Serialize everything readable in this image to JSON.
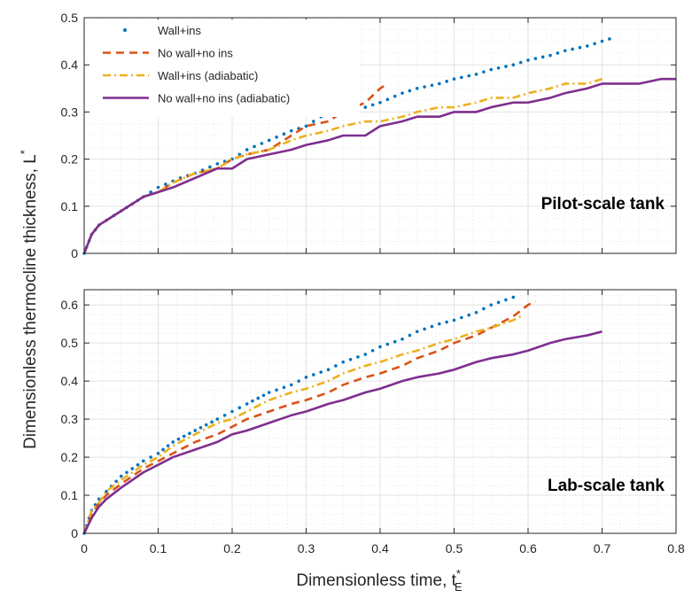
{
  "figure": {
    "ylabel": "Dimensionless thermocline thickness, L",
    "ylabel_super": "*",
    "xlabel": "Dimensionless time, t",
    "xlabel_super": "*",
    "xlabel_sub": "E"
  },
  "colors": {
    "wall_ins": "#0072BD",
    "no_wall_no_ins": "#D95319",
    "wall_ins_adiabatic": "#EDB120",
    "no_wall_no_ins_adiabatic": "#7E2F8E",
    "grid": "#e3e3e3",
    "axis": "#262626"
  },
  "chart_data": [
    {
      "type": "line",
      "panel_label": "Pilot-scale tank",
      "xlim": [
        0,
        0.8
      ],
      "ylim": [
        0,
        0.5
      ],
      "x_ticks": [
        "0",
        "0.1",
        "0.2",
        "0.3",
        "0.4",
        "0.5",
        "0.6",
        "0.7",
        "0.8"
      ],
      "y_ticks": [
        "0",
        "0.1",
        "0.2",
        "0.3",
        "0.4",
        "0.5"
      ],
      "show_x_tick_labels": false,
      "grid": true,
      "legend": {
        "position": "top-left",
        "entries": [
          "Wall+ins",
          "No wall+no ins",
          "Wall+ins (adiabatic)",
          "No wall+no ins (adiabatic)"
        ]
      },
      "series": [
        {
          "name": "Wall+ins",
          "style": "dotted",
          "x": [
            0,
            0.01,
            0.02,
            0.03,
            0.05,
            0.08,
            0.1,
            0.13,
            0.15,
            0.18,
            0.2,
            0.22,
            0.25,
            0.28,
            0.3,
            0.32,
            0.35,
            0.38,
            0.4,
            0.43,
            0.45,
            0.48,
            0.5,
            0.53,
            0.55,
            0.58,
            0.6,
            0.63,
            0.65,
            0.68,
            0.7,
            0.72
          ],
          "y": [
            0,
            0.04,
            0.06,
            0.07,
            0.09,
            0.12,
            0.14,
            0.16,
            0.17,
            0.19,
            0.2,
            0.22,
            0.24,
            0.26,
            0.27,
            0.29,
            0.3,
            0.31,
            0.32,
            0.34,
            0.35,
            0.36,
            0.37,
            0.38,
            0.39,
            0.4,
            0.41,
            0.42,
            0.43,
            0.44,
            0.45,
            0.46
          ]
        },
        {
          "name": "No wall+no ins",
          "style": "dashed",
          "x": [
            0,
            0.01,
            0.02,
            0.03,
            0.05,
            0.08,
            0.1,
            0.12,
            0.15,
            0.18,
            0.2,
            0.22,
            0.25,
            0.28,
            0.3,
            0.33,
            0.35,
            0.38,
            0.4,
            0.41
          ],
          "y": [
            0,
            0.04,
            0.06,
            0.07,
            0.09,
            0.12,
            0.13,
            0.15,
            0.17,
            0.18,
            0.2,
            0.21,
            0.22,
            0.25,
            0.27,
            0.28,
            0.3,
            0.32,
            0.35,
            0.36
          ]
        },
        {
          "name": "Wall+ins (adiabatic)",
          "style": "dashdot",
          "x": [
            0,
            0.01,
            0.02,
            0.03,
            0.05,
            0.08,
            0.1,
            0.12,
            0.15,
            0.18,
            0.2,
            0.22,
            0.25,
            0.28,
            0.3,
            0.33,
            0.35,
            0.38,
            0.4,
            0.43,
            0.45,
            0.48,
            0.5,
            0.53,
            0.55,
            0.58,
            0.6,
            0.63,
            0.65,
            0.68,
            0.7
          ],
          "y": [
            0,
            0.04,
            0.06,
            0.07,
            0.09,
            0.12,
            0.13,
            0.15,
            0.17,
            0.18,
            0.2,
            0.21,
            0.22,
            0.24,
            0.25,
            0.26,
            0.27,
            0.28,
            0.28,
            0.29,
            0.3,
            0.31,
            0.31,
            0.32,
            0.33,
            0.33,
            0.34,
            0.35,
            0.36,
            0.36,
            0.37
          ]
        },
        {
          "name": "No wall+no ins (adiabatic)",
          "style": "solid",
          "x": [
            0,
            0.01,
            0.02,
            0.03,
            0.05,
            0.08,
            0.1,
            0.12,
            0.15,
            0.18,
            0.2,
            0.22,
            0.25,
            0.28,
            0.3,
            0.33,
            0.35,
            0.38,
            0.4,
            0.43,
            0.45,
            0.48,
            0.5,
            0.53,
            0.55,
            0.58,
            0.6,
            0.63,
            0.65,
            0.68,
            0.7,
            0.73,
            0.75,
            0.78,
            0.8
          ],
          "y": [
            0,
            0.04,
            0.06,
            0.07,
            0.09,
            0.12,
            0.13,
            0.14,
            0.16,
            0.18,
            0.18,
            0.2,
            0.21,
            0.22,
            0.23,
            0.24,
            0.25,
            0.25,
            0.27,
            0.28,
            0.29,
            0.29,
            0.3,
            0.3,
            0.31,
            0.32,
            0.32,
            0.33,
            0.34,
            0.35,
            0.36,
            0.36,
            0.36,
            0.37,
            0.37
          ]
        }
      ]
    },
    {
      "type": "line",
      "panel_label": "Lab-scale tank",
      "xlim": [
        0,
        0.8
      ],
      "ylim": [
        0,
        0.64
      ],
      "x_ticks": [
        "0",
        "0.1",
        "0.2",
        "0.3",
        "0.4",
        "0.5",
        "0.6",
        "0.7",
        "0.8"
      ],
      "y_ticks": [
        "0",
        "0.1",
        "0.2",
        "0.3",
        "0.4",
        "0.5",
        "0.6"
      ],
      "show_x_tick_labels": true,
      "grid": true,
      "series": [
        {
          "name": "Wall+ins",
          "style": "dotted",
          "x": [
            0,
            0.01,
            0.02,
            0.03,
            0.05,
            0.08,
            0.1,
            0.12,
            0.15,
            0.18,
            0.2,
            0.22,
            0.25,
            0.28,
            0.3,
            0.33,
            0.35,
            0.38,
            0.4,
            0.43,
            0.45,
            0.48,
            0.5,
            0.53,
            0.55,
            0.58,
            0.59
          ],
          "y": [
            0,
            0.06,
            0.09,
            0.11,
            0.15,
            0.19,
            0.21,
            0.24,
            0.27,
            0.3,
            0.32,
            0.34,
            0.37,
            0.39,
            0.41,
            0.43,
            0.45,
            0.47,
            0.49,
            0.51,
            0.53,
            0.55,
            0.56,
            0.58,
            0.6,
            0.62,
            0.63
          ]
        },
        {
          "name": "No wall+no ins",
          "style": "dashed",
          "x": [
            0,
            0.01,
            0.02,
            0.03,
            0.05,
            0.08,
            0.1,
            0.12,
            0.15,
            0.18,
            0.2,
            0.22,
            0.25,
            0.28,
            0.3,
            0.33,
            0.35,
            0.38,
            0.4,
            0.43,
            0.45,
            0.48,
            0.5,
            0.53,
            0.55,
            0.58,
            0.6,
            0.61
          ],
          "y": [
            0,
            0.05,
            0.08,
            0.1,
            0.13,
            0.17,
            0.19,
            0.21,
            0.24,
            0.26,
            0.28,
            0.3,
            0.32,
            0.34,
            0.35,
            0.37,
            0.39,
            0.41,
            0.42,
            0.44,
            0.46,
            0.48,
            0.5,
            0.52,
            0.54,
            0.57,
            0.6,
            0.61
          ]
        },
        {
          "name": "Wall+ins (adiabatic)",
          "style": "dashdot",
          "x": [
            0,
            0.01,
            0.02,
            0.03,
            0.05,
            0.08,
            0.1,
            0.12,
            0.15,
            0.18,
            0.2,
            0.22,
            0.25,
            0.28,
            0.3,
            0.33,
            0.35,
            0.38,
            0.4,
            0.43,
            0.45,
            0.48,
            0.5,
            0.53,
            0.55,
            0.58,
            0.59
          ],
          "y": [
            0,
            0.06,
            0.08,
            0.11,
            0.14,
            0.18,
            0.2,
            0.23,
            0.26,
            0.29,
            0.3,
            0.32,
            0.35,
            0.37,
            0.38,
            0.4,
            0.42,
            0.44,
            0.45,
            0.47,
            0.48,
            0.5,
            0.51,
            0.53,
            0.54,
            0.56,
            0.57
          ]
        },
        {
          "name": "No wall+no ins (adiabatic)",
          "style": "solid",
          "x": [
            0,
            0.01,
            0.02,
            0.03,
            0.05,
            0.08,
            0.1,
            0.12,
            0.15,
            0.18,
            0.2,
            0.22,
            0.25,
            0.28,
            0.3,
            0.33,
            0.35,
            0.38,
            0.4,
            0.43,
            0.45,
            0.48,
            0.5,
            0.53,
            0.55,
            0.58,
            0.6,
            0.63,
            0.65,
            0.68,
            0.7
          ],
          "y": [
            0,
            0.04,
            0.07,
            0.09,
            0.12,
            0.16,
            0.18,
            0.2,
            0.22,
            0.24,
            0.26,
            0.27,
            0.29,
            0.31,
            0.32,
            0.34,
            0.35,
            0.37,
            0.38,
            0.4,
            0.41,
            0.42,
            0.43,
            0.45,
            0.46,
            0.47,
            0.48,
            0.5,
            0.51,
            0.52,
            0.53
          ]
        }
      ]
    }
  ]
}
